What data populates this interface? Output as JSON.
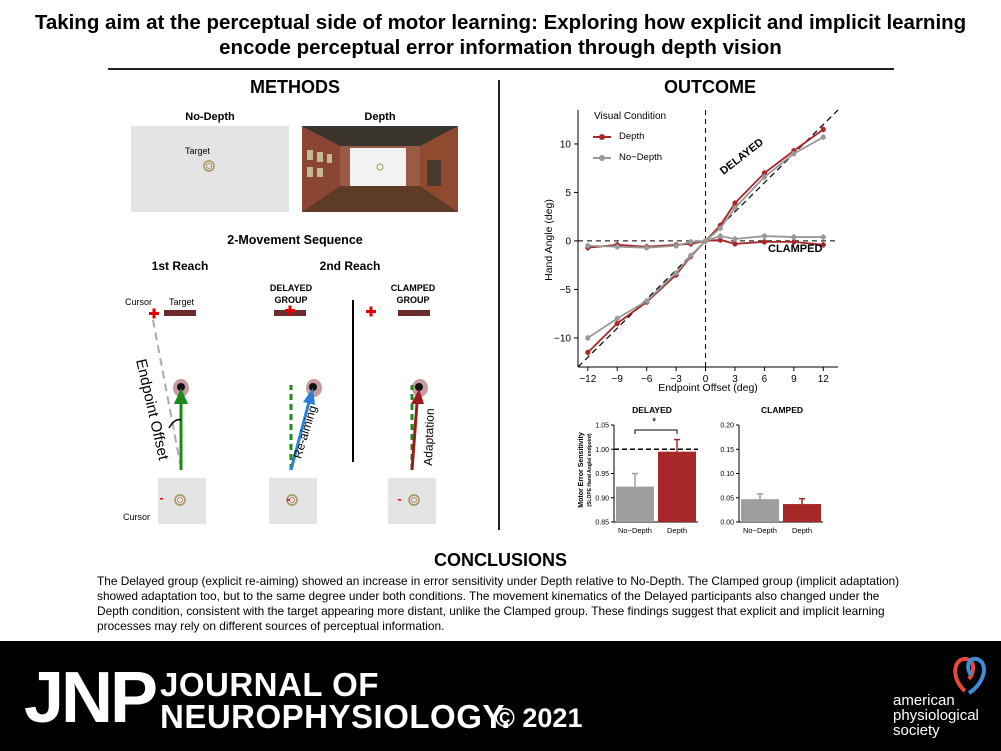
{
  "title": "Taking aim at the perceptual side of motor learning: Exploring how explicit and implicit learning encode perceptual error information through depth vision",
  "methods": {
    "heading": "METHODS",
    "nodepth_label": "No-Depth",
    "depth_label": "Depth",
    "target_label": "Target",
    "sequence_heading": "2-Movement Sequence",
    "first_reach": "1st Reach",
    "second_reach": "2nd Reach",
    "cursor_label": "Cursor",
    "target_label2": "Target",
    "delayed_group": "DELAYED GROUP",
    "clamped_group": "CLAMPED GROUP",
    "endpoint_offset": "Endpoint Offset",
    "re_aiming": "Re-aiming",
    "adaptation": "Adaptation",
    "cursor_bottom": "Cursor"
  },
  "outcome": {
    "heading": "OUTCOME",
    "legend_title": "Visual Condition",
    "delayed_text": "DELAYED",
    "clamped_text": "CLAMPED",
    "bar_delayed_title": "DELAYED",
    "bar_clamped_title": "CLAMPED",
    "bar_ylabel": "Motor Error Sensitivity",
    "bar_ylabel_sub": "(SLOPE Hand Angle/ endpoint)",
    "star": "*"
  },
  "chart_data": [
    {
      "type": "line",
      "xlabel": "Endpoint Offset (deg)",
      "ylabel": "Hand Angle (deg)",
      "xlim": [
        -13,
        13.5
      ],
      "ylim": [
        -13,
        13.5
      ],
      "xticks": [
        -12,
        -9,
        -6,
        -3,
        0,
        3,
        6,
        9,
        12
      ],
      "yticks": [
        -10,
        -5,
        0,
        5,
        10
      ],
      "legend": "top-left",
      "x": [
        -12,
        -9,
        -6,
        -3,
        -1.5,
        0,
        1.5,
        3,
        6,
        9,
        12
      ],
      "series": [
        {
          "name": "Depth",
          "group": "DELAYED",
          "color": "#a8282a",
          "values": [
            -11.5,
            -8.5,
            -6.3,
            -3.5,
            -1.6,
            0,
            1.6,
            3.9,
            7.0,
            9.3,
            11.5
          ]
        },
        {
          "name": "No−Depth",
          "group": "DELAYED",
          "color": "#999999",
          "values": [
            -10.0,
            -8.0,
            -6.2,
            -3.3,
            -1.5,
            0,
            1.3,
            3.4,
            6.6,
            9.0,
            10.7
          ]
        },
        {
          "name": "Depth",
          "group": "CLAMPED",
          "color": "#a8282a",
          "values": [
            -0.7,
            -0.4,
            -0.6,
            -0.4,
            -0.3,
            0,
            0.1,
            -0.3,
            -0.1,
            -0.1,
            -0.4
          ]
        },
        {
          "name": "No−Depth",
          "group": "CLAMPED",
          "color": "#999999",
          "values": [
            -0.5,
            -0.6,
            -0.7,
            -0.5,
            -0.1,
            0,
            0.5,
            0.2,
            0.5,
            0.4,
            0.4
          ]
        }
      ]
    },
    {
      "type": "bar",
      "title": "DELAYED",
      "categories": [
        "No−Depth",
        "Depth"
      ],
      "values": [
        0.923,
        0.995
      ],
      "errors": [
        0.027,
        0.025
      ],
      "ylim": [
        0.85,
        1.05
      ],
      "yticks": [
        0.85,
        0.9,
        0.95,
        1.0,
        1.05
      ],
      "colors": [
        "#9e9e9e",
        "#a8282a"
      ],
      "reference_line": 1.0
    },
    {
      "type": "bar",
      "title": "CLAMPED",
      "categories": [
        "No−Depth",
        "Depth"
      ],
      "values": [
        0.047,
        0.037
      ],
      "errors": [
        0.011,
        0.011
      ],
      "ylim": [
        0.0,
        0.2
      ],
      "yticks": [
        0.0,
        0.05,
        0.1,
        0.15,
        0.2
      ],
      "colors": [
        "#9e9e9e",
        "#a8282a"
      ]
    }
  ],
  "conclusions": {
    "heading": "CONCLUSIONS",
    "text": "The Delayed group (explicit re-aiming) showed an increase in error sensitivity under Depth relative to No-Depth. The Clamped group (implicit adaptation) showed adaptation too, but to the same degree under both conditions. The movement kinematics of the Delayed participants also changed under the Depth condition, consistent with the target appearing more distant, unlike the Clamped group. These findings suggest that explicit and implicit learning processes may rely on different sources of perceptual information."
  },
  "footer": {
    "jnp": "JNP",
    "journal_line1": "JOURNAL OF",
    "journal_line2": "NEUROPHYSIOLOGY.",
    "year": "© 2021",
    "society_line1": "american",
    "society_line2": "physiological",
    "society_line3": "society"
  }
}
